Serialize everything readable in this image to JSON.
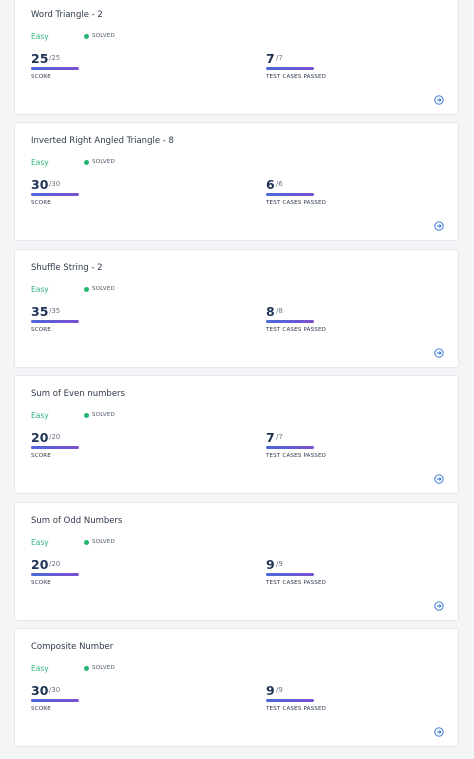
{
  "cards": [
    {
      "title": "Word Triangle - 2",
      "difficulty": "Easy",
      "status": "SOLVED",
      "score": 25,
      "score_max": "/25",
      "score_label": "SCORE",
      "tests": 7,
      "tests_max": "/7",
      "tests_label": "TEST CASES PASSED"
    },
    {
      "title": "Inverted Right Angled Triangle - 8",
      "difficulty": "Easy",
      "status": "SOLVED",
      "score": 30,
      "score_max": "/30",
      "score_label": "SCORE",
      "tests": 6,
      "tests_max": "/6",
      "tests_label": "TEST CASES PASSED"
    },
    {
      "title": "Shuffle String - 2",
      "difficulty": "Easy",
      "status": "SOLVED",
      "score": 35,
      "score_max": "/35",
      "score_label": "SCORE",
      "tests": 8,
      "tests_max": "/8",
      "tests_label": "TEST CASES PASSED"
    },
    {
      "title": "Sum of Even numbers",
      "difficulty": "Easy",
      "status": "SOLVED",
      "score": 20,
      "score_max": "/20",
      "score_label": "SCORE",
      "tests": 7,
      "tests_max": "/7",
      "tests_label": "TEST CASES PASSED"
    },
    {
      "title": "Sum of Odd Numbers",
      "difficulty": "Easy",
      "status": "SOLVED",
      "score": 20,
      "score_max": "/20",
      "score_label": "SCORE",
      "tests": 9,
      "tests_max": "/9",
      "tests_label": "TEST CASES PASSED"
    },
    {
      "title": "Composite Number",
      "difficulty": "Easy",
      "status": "SOLVED",
      "score": 30,
      "score_max": "/30",
      "score_label": "SCORE",
      "tests": 9,
      "tests_max": "/9",
      "tests_label": "TEST CASES PASSED"
    }
  ]
}
